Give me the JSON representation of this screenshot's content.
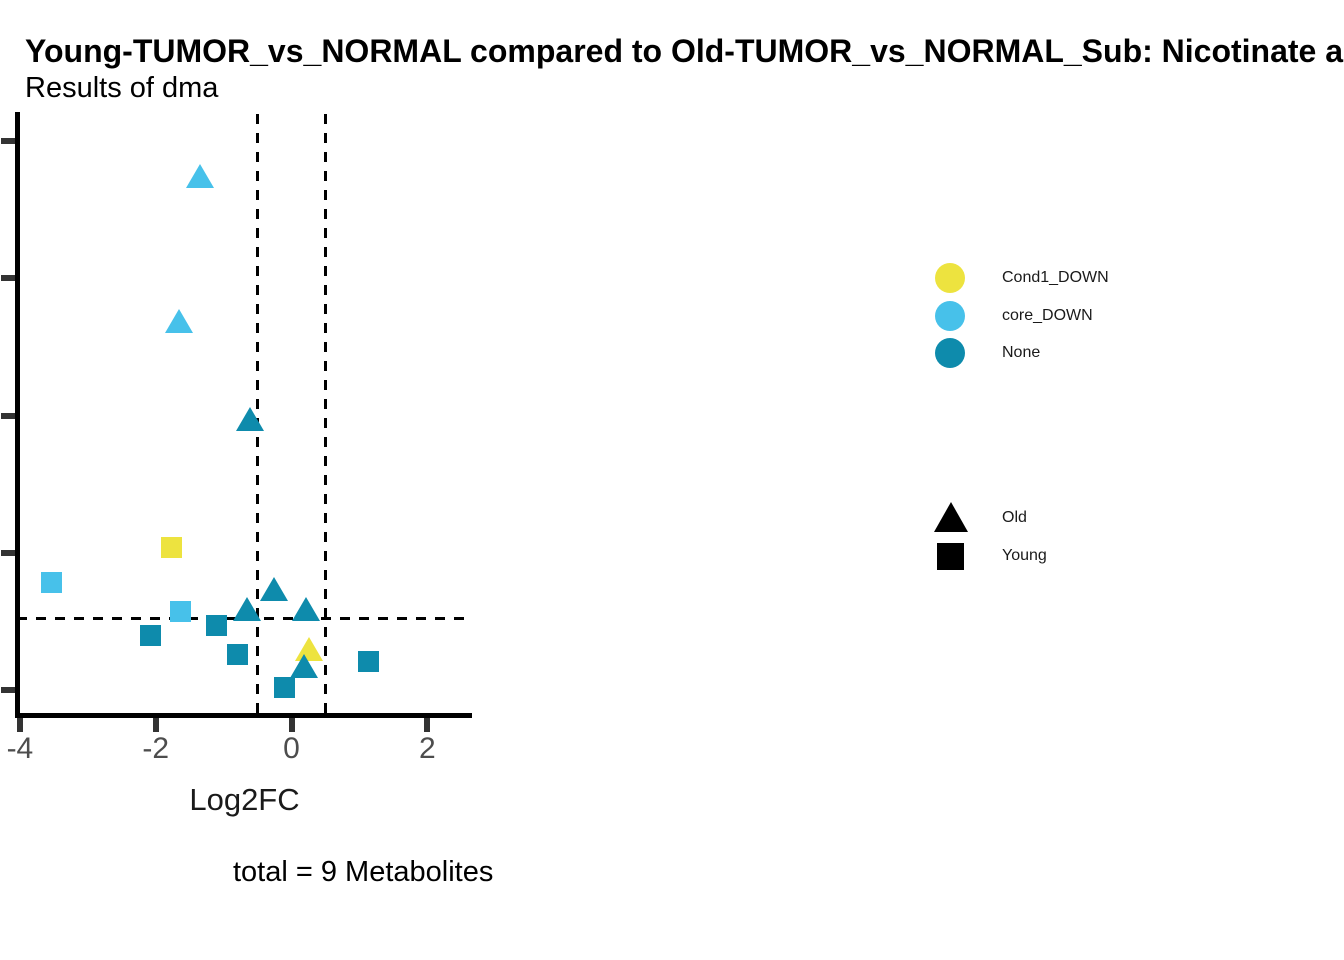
{
  "header": {
    "title": "Young-TUMOR_vs_NORMAL compared to Old-TUMOR_vs_NORMAL_Sub: Nicotinate an",
    "subtitle": "Results of dma"
  },
  "x_axis": {
    "label": "Log2FC",
    "tick_labels": [
      "-4",
      "-2",
      "0",
      "2"
    ],
    "tick_values": [
      -4,
      -2,
      0,
      2
    ]
  },
  "y_axis": {
    "labels_visible": false,
    "num_ticks": 5
  },
  "caption": "total = 9 Metabolites",
  "colors": {
    "Cond1_DOWN": "#EDE33F",
    "core_DOWN": "#47C1EA",
    "None": "#0E8BAC",
    "shape_legend": "#000000",
    "axis": "#000000",
    "ticks": "#333333",
    "tick_labels": "#4d4d4d"
  },
  "legend": {
    "color_items": [
      {
        "label": "Cond1_DOWN",
        "color": "#EDE33F"
      },
      {
        "label": "core_DOWN",
        "color": "#47C1EA"
      },
      {
        "label": "None",
        "color": "#0E8BAC"
      }
    ],
    "shape_items": [
      {
        "label": "Old",
        "shape": "triangle"
      },
      {
        "label": "Young",
        "shape": "square"
      }
    ]
  },
  "chart_data": {
    "type": "scatter",
    "title": "Young-TUMOR_vs_NORMAL compared to Old-TUMOR_vs_NORMAL_Sub: Nicotinate an",
    "subtitle": "Results of dma",
    "caption": "total = 9 Metabolites",
    "xlabel": "Log2FC",
    "ylabel": "",
    "xlim": [
      -4.07,
      2.66
    ],
    "x_ticks": [
      -4,
      -2,
      0,
      2
    ],
    "y_axis_note": "y tick labels are cropped out of the image; y values below are in visible tick units (bottom visible tick = 0, one tick = 1 unit)",
    "y_ticks_tick_units": [
      0,
      1,
      2,
      3,
      4
    ],
    "grid": false,
    "legend_position": "right",
    "threshold_lines": {
      "vertical_x": [
        -0.5,
        0.5
      ],
      "horizontal_y_tick_units": 0.52,
      "style": "dashed",
      "color": "#000000"
    },
    "points": [
      {
        "log2fc": -1.35,
        "y": 3.74,
        "set": "core_DOWN",
        "group": "Old"
      },
      {
        "log2fc": -1.66,
        "y": 2.68,
        "set": "core_DOWN",
        "group": "Old"
      },
      {
        "log2fc": -0.61,
        "y": 1.97,
        "set": "None",
        "group": "Old"
      },
      {
        "log2fc": -1.77,
        "y": 1.04,
        "set": "Cond1_DOWN",
        "group": "Young"
      },
      {
        "log2fc": -3.53,
        "y": 0.78,
        "set": "core_DOWN",
        "group": "Young"
      },
      {
        "log2fc": -0.26,
        "y": 0.73,
        "set": "None",
        "group": "Old"
      },
      {
        "log2fc": -0.66,
        "y": 0.58,
        "set": "None",
        "group": "Old"
      },
      {
        "log2fc": -1.63,
        "y": 0.57,
        "set": "core_DOWN",
        "group": "Young"
      },
      {
        "log2fc": 0.21,
        "y": 0.58,
        "set": "None",
        "group": "Old"
      },
      {
        "log2fc": -1.1,
        "y": 0.47,
        "set": "None",
        "group": "Young"
      },
      {
        "log2fc": -2.08,
        "y": 0.4,
        "set": "None",
        "group": "Young"
      },
      {
        "log2fc": -0.8,
        "y": 0.26,
        "set": "None",
        "group": "Young"
      },
      {
        "log2fc": 0.26,
        "y": 0.29,
        "set": "Cond1_DOWN",
        "group": "Old"
      },
      {
        "log2fc": 0.18,
        "y": 0.17,
        "set": "None",
        "group": "Old"
      },
      {
        "log2fc": -0.11,
        "y": 0.02,
        "set": "None",
        "group": "Young"
      },
      {
        "log2fc": 1.14,
        "y": 0.21,
        "set": "None",
        "group": "Young"
      }
    ]
  }
}
